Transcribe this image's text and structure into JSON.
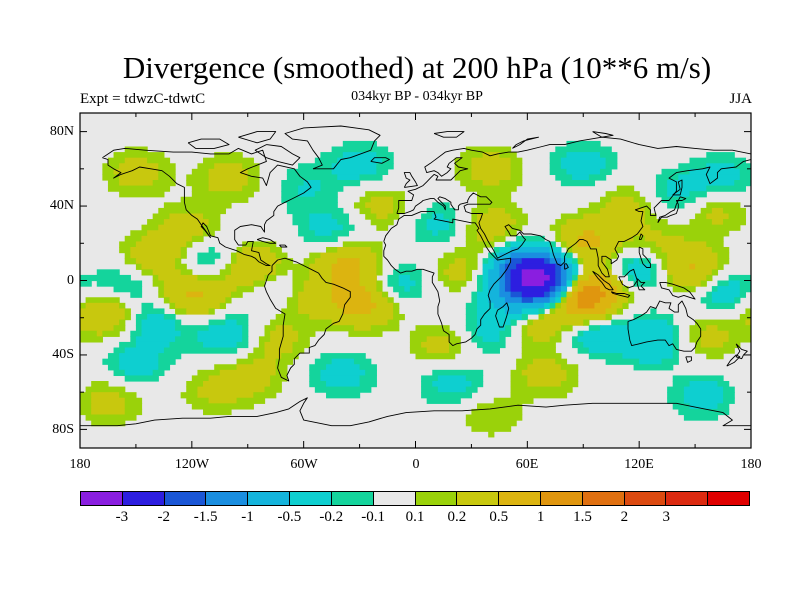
{
  "title": "Divergence (smoothed) at 200 hPa (10**6 m/s)",
  "subtitle_left": "Expt = tdwzC-tdwtC",
  "subtitle_center": "034kyr BP - 034kyr BP",
  "subtitle_right": "JJA",
  "lat_labels": [
    "80N",
    "40N",
    "0",
    "40S",
    "80S"
  ],
  "lon_labels": [
    "180",
    "120W",
    "60W",
    "0",
    "60E",
    "120E",
    "180"
  ],
  "colorbar": {
    "colors": [
      "#8a1ee0",
      "#2d1ee0",
      "#1a56d6",
      "#1a8ee0",
      "#14b4dc",
      "#0ecfd0",
      "#14d49c",
      "#e8e8e8",
      "#9ad20a",
      "#c8c80e",
      "#dcb410",
      "#e0960e",
      "#e07010",
      "#dc4a10",
      "#dc2a10",
      "#e00000"
    ],
    "labels": [
      "-3",
      "-2",
      "-1.5",
      "-1",
      "-0.5",
      "-0.2",
      "-0.1",
      "0.1",
      "0.2",
      "0.5",
      "1",
      "1.5",
      "2",
      "3"
    ]
  },
  "chart_data": {
    "type": "heatmap",
    "title": "Divergence (smoothed) at 200 hPa (10**6 m/s)",
    "xlabel": "",
    "ylabel": "",
    "xlim": [
      -180,
      180
    ],
    "ylim": [
      -90,
      90
    ],
    "season": "JJA",
    "levels": [
      -3,
      -2,
      -1.5,
      -1,
      -0.5,
      -0.2,
      -0.1,
      0.1,
      0.2,
      0.5,
      1,
      1.5,
      2,
      3
    ],
    "features": [
      {
        "lon": 66,
        "lat": 0,
        "value": -3.2
      },
      {
        "lon": 58,
        "lat": 8,
        "value": -0.7
      },
      {
        "lon": 52,
        "lat": -12,
        "value": -0.4
      },
      {
        "lon": 90,
        "lat": -8,
        "value": 1.6
      },
      {
        "lon": 92,
        "lat": 20,
        "value": 0.6
      },
      {
        "lon": 122,
        "lat": 8,
        "value": -0.6
      },
      {
        "lon": 128,
        "lat": 16,
        "value": 0.4
      },
      {
        "lon": 150,
        "lat": 4,
        "value": 0.7
      },
      {
        "lon": 162,
        "lat": -4,
        "value": -0.5
      },
      {
        "lon": 128,
        "lat": -32,
        "value": -0.5
      },
      {
        "lon": 95,
        "lat": -28,
        "value": -0.4
      },
      {
        "lon": 65,
        "lat": -22,
        "value": 0.5
      },
      {
        "lon": 155,
        "lat": -30,
        "value": 0.3
      },
      {
        "lon": 115,
        "lat": 40,
        "value": 0.3
      },
      {
        "lon": 140,
        "lat": 46,
        "value": -0.3
      },
      {
        "lon": 160,
        "lat": 38,
        "value": 0.3
      },
      {
        "lon": -88,
        "lat": 6,
        "value": 0.7
      },
      {
        "lon": -78,
        "lat": -2,
        "value": -0.4
      },
      {
        "lon": -110,
        "lat": 10,
        "value": -0.4
      },
      {
        "lon": -122,
        "lat": 28,
        "value": 0.3
      },
      {
        "lon": -140,
        "lat": 12,
        "value": 0.4
      },
      {
        "lon": -155,
        "lat": -2,
        "value": -0.3
      },
      {
        "lon": -120,
        "lat": -8,
        "value": 0.6
      },
      {
        "lon": -165,
        "lat": -18,
        "value": 0.5
      },
      {
        "lon": -140,
        "lat": -22,
        "value": -0.4
      },
      {
        "lon": -100,
        "lat": -30,
        "value": -0.4
      },
      {
        "lon": -60,
        "lat": -8,
        "value": 0.3
      },
      {
        "lon": -75,
        "lat": -32,
        "value": 0.3
      },
      {
        "lon": -35,
        "lat": 8,
        "value": 0.6
      },
      {
        "lon": -28,
        "lat": -12,
        "value": 0.7
      },
      {
        "lon": -12,
        "lat": -2,
        "value": -0.4
      },
      {
        "lon": -45,
        "lat": 28,
        "value": -0.3
      },
      {
        "lon": -20,
        "lat": 40,
        "value": 0.3
      },
      {
        "lon": 15,
        "lat": 30,
        "value": -0.3
      },
      {
        "lon": 25,
        "lat": 5,
        "value": 0.3
      },
      {
        "lon": 40,
        "lat": 28,
        "value": 0.4
      },
      {
        "lon": 15,
        "lat": -35,
        "value": 0.3
      },
      {
        "lon": 40,
        "lat": -28,
        "value": -0.3
      },
      {
        "lon": -40,
        "lat": -50,
        "value": -0.3
      },
      {
        "lon": -90,
        "lat": -52,
        "value": 0.3
      },
      {
        "lon": 20,
        "lat": -55,
        "value": -0.3
      },
      {
        "lon": 70,
        "lat": -50,
        "value": 0.3
      },
      {
        "lon": -150,
        "lat": -45,
        "value": -0.3
      },
      {
        "lon": -110,
        "lat": -60,
        "value": 0.2
      },
      {
        "lon": 40,
        "lat": 60,
        "value": 0.3
      },
      {
        "lon": -30,
        "lat": 62,
        "value": -0.3
      },
      {
        "lon": 90,
        "lat": 62,
        "value": -0.3
      },
      {
        "lon": -150,
        "lat": 58,
        "value": 0.3
      },
      {
        "lon": -100,
        "lat": 55,
        "value": 0.3
      },
      {
        "lon": -60,
        "lat": 50,
        "value": -0.2
      },
      {
        "lon": 165,
        "lat": 55,
        "value": -0.3
      },
      {
        "lon": -165,
        "lat": -65,
        "value": 0.3
      },
      {
        "lon": 40,
        "lat": -72,
        "value": 0.2
      },
      {
        "lon": 155,
        "lat": -62,
        "value": -0.3
      }
    ]
  }
}
